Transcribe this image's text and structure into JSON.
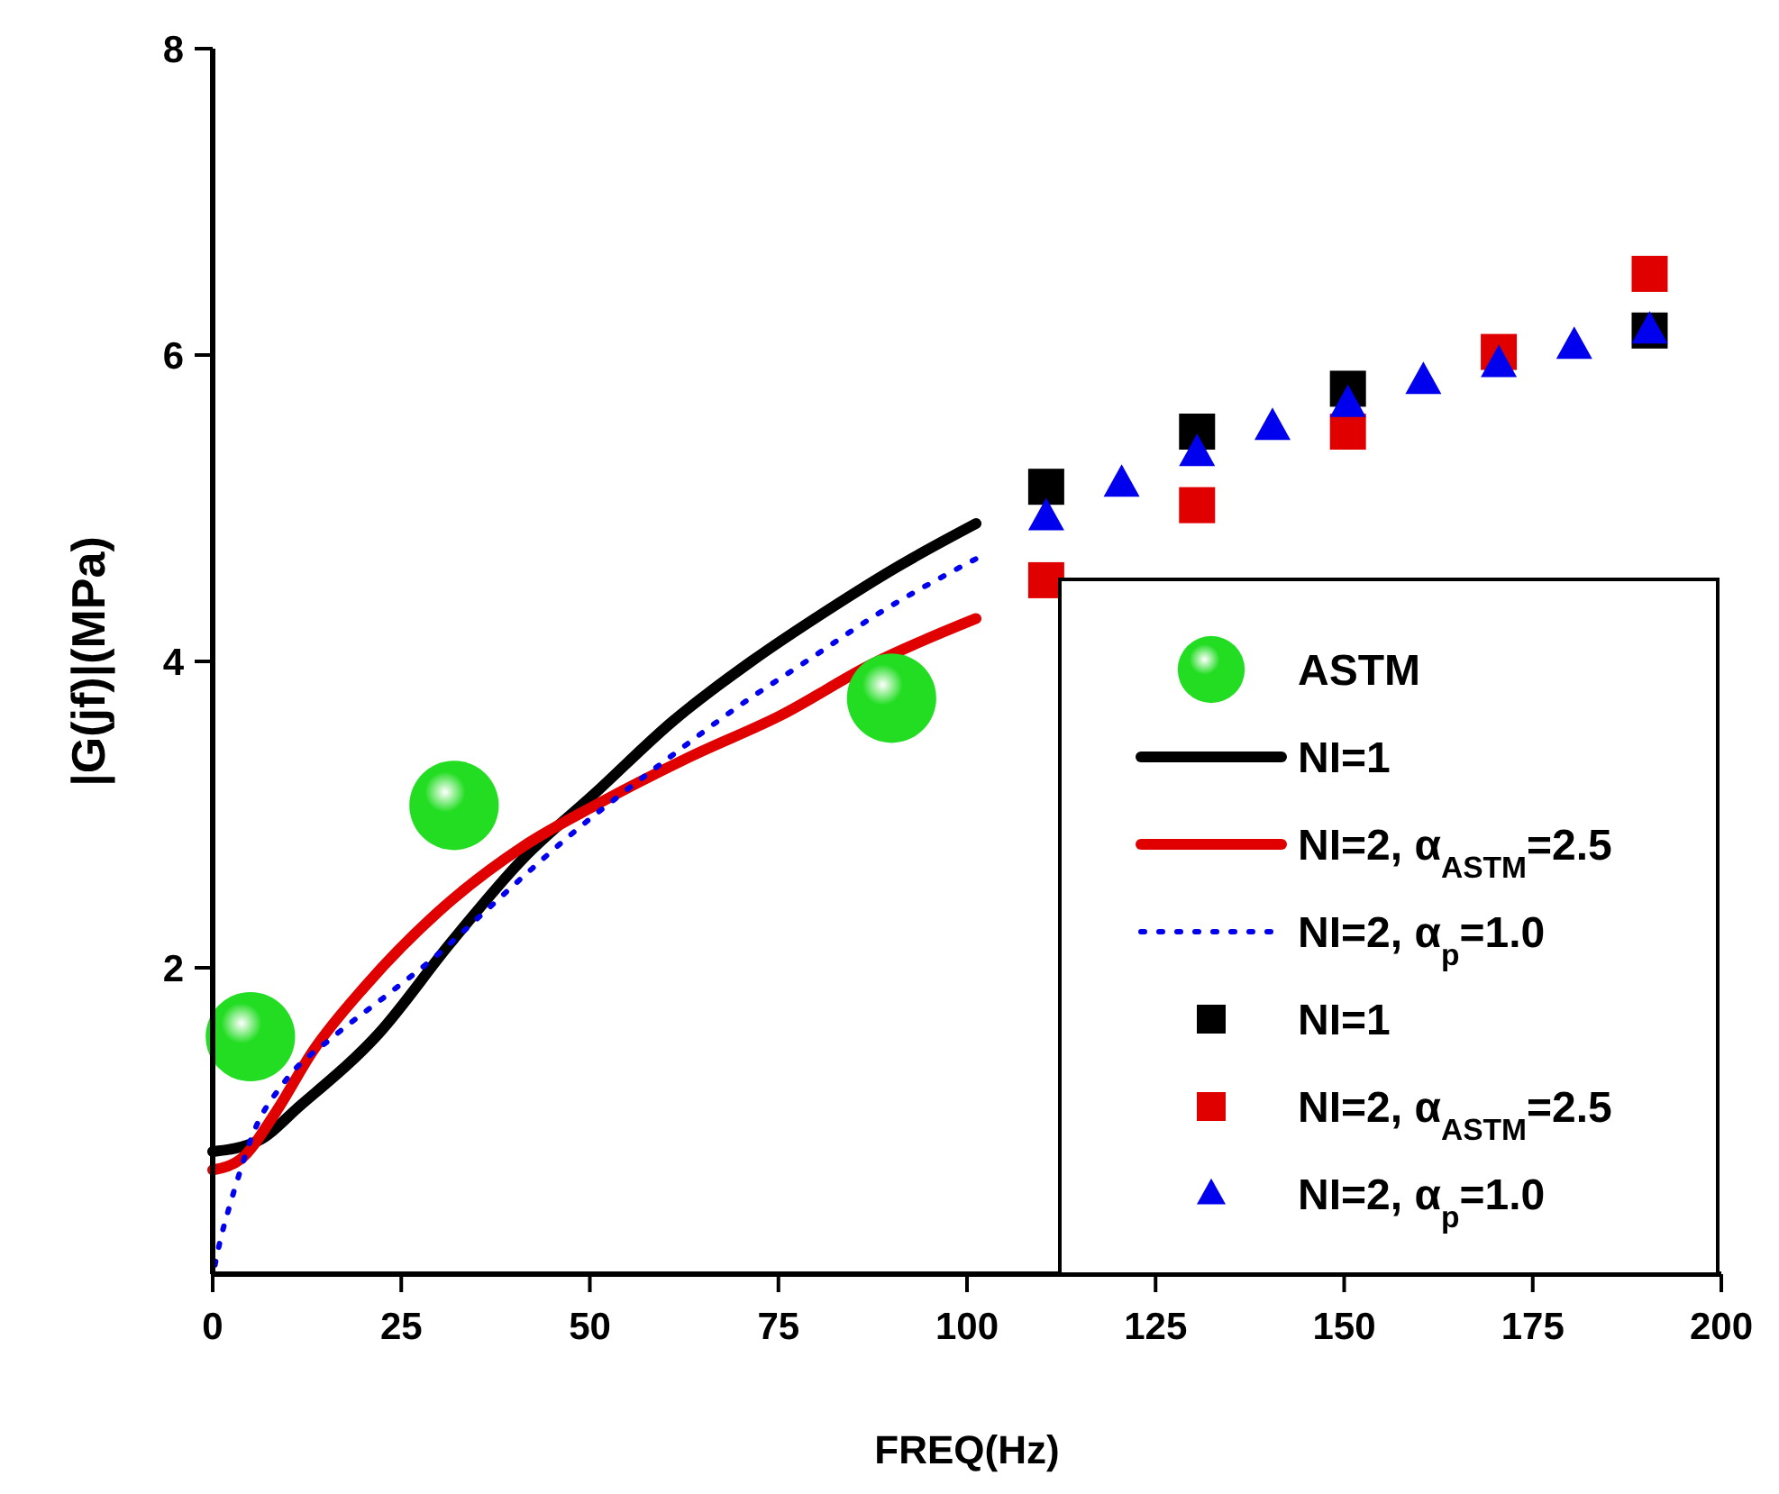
{
  "chart_data": {
    "type": "line",
    "xlabel": "FREQ(Hz)",
    "ylabel": "|G(jf)|(MPa)",
    "xlim": [
      0,
      200
    ],
    "xticks": [
      0,
      25,
      50,
      75,
      100,
      125,
      150,
      175,
      200
    ],
    "ylim": [
      0,
      8
    ],
    "yticks": [
      2,
      4,
      6,
      8
    ],
    "grid": false,
    "legend": "bottom right",
    "series": [
      {
        "name": "ASTM",
        "type": "scatter",
        "marker": "circle",
        "color": "#22dd22",
        "x": [
          5,
          32,
          90
        ],
        "values": [
          1.55,
          3.06,
          3.76
        ]
      },
      {
        "name": "NI=1",
        "line_style": "solid",
        "color": "#000000",
        "x": [
          0,
          6,
          11.6,
          22,
          31.5,
          41.1,
          50.7,
          61,
          71.4,
          81.7,
          90.5,
          101.2
        ],
        "values": [
          0.8,
          0.87,
          1.1,
          1.57,
          2.16,
          2.71,
          3.14,
          3.61,
          4.0,
          4.34,
          4.61,
          4.9
        ]
      },
      {
        "name": "NI=2, α$_{ASTM}$=2.5",
        "line_style": "solid",
        "color": "#e00000",
        "x": [
          0,
          3.7,
          8.4,
          13.2,
          20.4,
          30.7,
          41.1,
          50.7,
          63.4,
          75.4,
          87.3,
          101.2
        ],
        "values": [
          0.68,
          0.75,
          1.06,
          1.45,
          1.89,
          2.4,
          2.79,
          3.06,
          3.38,
          3.65,
          3.98,
          4.28
        ]
      },
      {
        "name": "NI=2, α$_{p}$=1.0",
        "line_style": "dotted",
        "color": "#0000ee",
        "x": [
          0.3,
          1.1,
          2.1,
          3,
          5.3,
          9.6,
          16,
          22.8,
          29.2,
          35.5,
          41.5,
          47.5,
          53.8,
          60.2,
          69.8,
          79.3,
          88.5,
          101.2
        ],
        "values": [
          0.06,
          0.24,
          0.42,
          0.57,
          0.91,
          1.26,
          1.55,
          1.81,
          2.06,
          2.34,
          2.61,
          2.87,
          3.12,
          3.36,
          3.71,
          4.02,
          4.32,
          4.67
        ]
      },
      {
        "name": "NI=1",
        "type": "scatter",
        "marker": "square",
        "color": "#000000",
        "x": [
          110.5,
          130.5,
          150.5,
          190.5
        ],
        "values": [
          5.14,
          5.5,
          5.78,
          6.16
        ]
      },
      {
        "name": "NI=2, α$_{ASTM}$=2.5",
        "type": "scatter",
        "marker": "square",
        "color": "#e00000",
        "x": [
          110.5,
          130.5,
          150.5,
          170.5,
          190.5
        ],
        "values": [
          4.53,
          5.02,
          5.5,
          6.02,
          6.53
        ]
      },
      {
        "name": "NI=2, α$_{p}$=1.0",
        "type": "scatter",
        "marker": "triangle",
        "color": "#0000ee",
        "x": [
          110.5,
          120.5,
          130.5,
          140.5,
          150.5,
          160.5,
          170.5,
          180.5,
          190.5
        ],
        "values": [
          4.94,
          5.16,
          5.36,
          5.53,
          5.68,
          5.83,
          5.94,
          6.06,
          6.16
        ]
      }
    ]
  }
}
